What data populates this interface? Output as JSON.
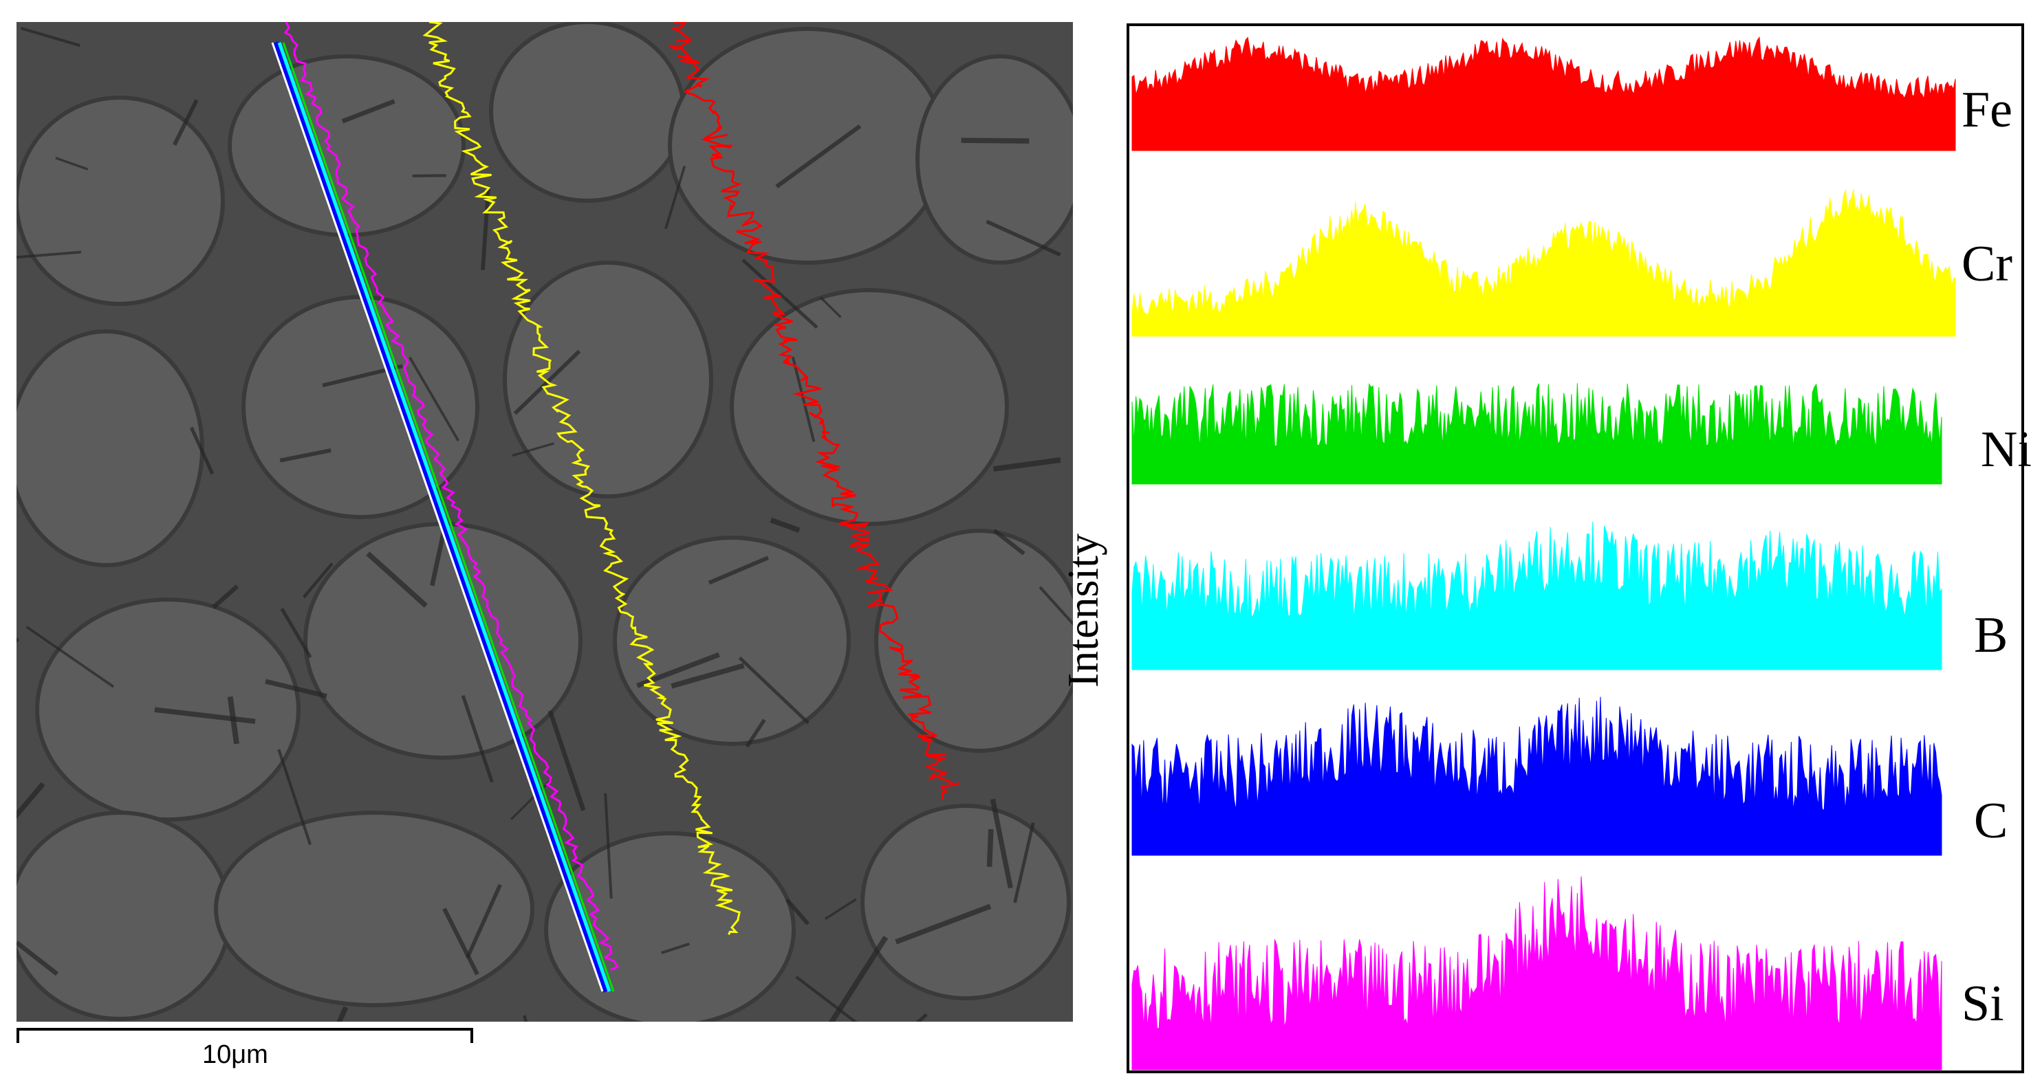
{
  "figure": {
    "scale_bar": {
      "label": "10μm"
    },
    "profile_axis": {
      "ylabel": "Intensity"
    },
    "sem_image": {
      "description_icon": "sem-micrograph"
    },
    "elements": [
      {
        "symbol": "Fe",
        "color": "#ff0000"
      },
      {
        "symbol": "Cr",
        "color": "#ffff00"
      },
      {
        "symbol": "Ni",
        "color": "#00e000"
      },
      {
        "symbol": "B",
        "color": "#00ffff"
      },
      {
        "symbol": "C",
        "color": "#0000ff"
      },
      {
        "symbol": "Si",
        "color": "#ff00ff"
      }
    ],
    "line_scan_colors": {
      "fe_trace": "#ff0000",
      "cr_trace": "#ffff00",
      "si_trace": "#ff00ff",
      "scan_line_white": "#ffffff",
      "scan_line_cyan": "#00ffff",
      "scan_line_green": "#00e000",
      "scan_line_blue": "#0000ff"
    }
  }
}
